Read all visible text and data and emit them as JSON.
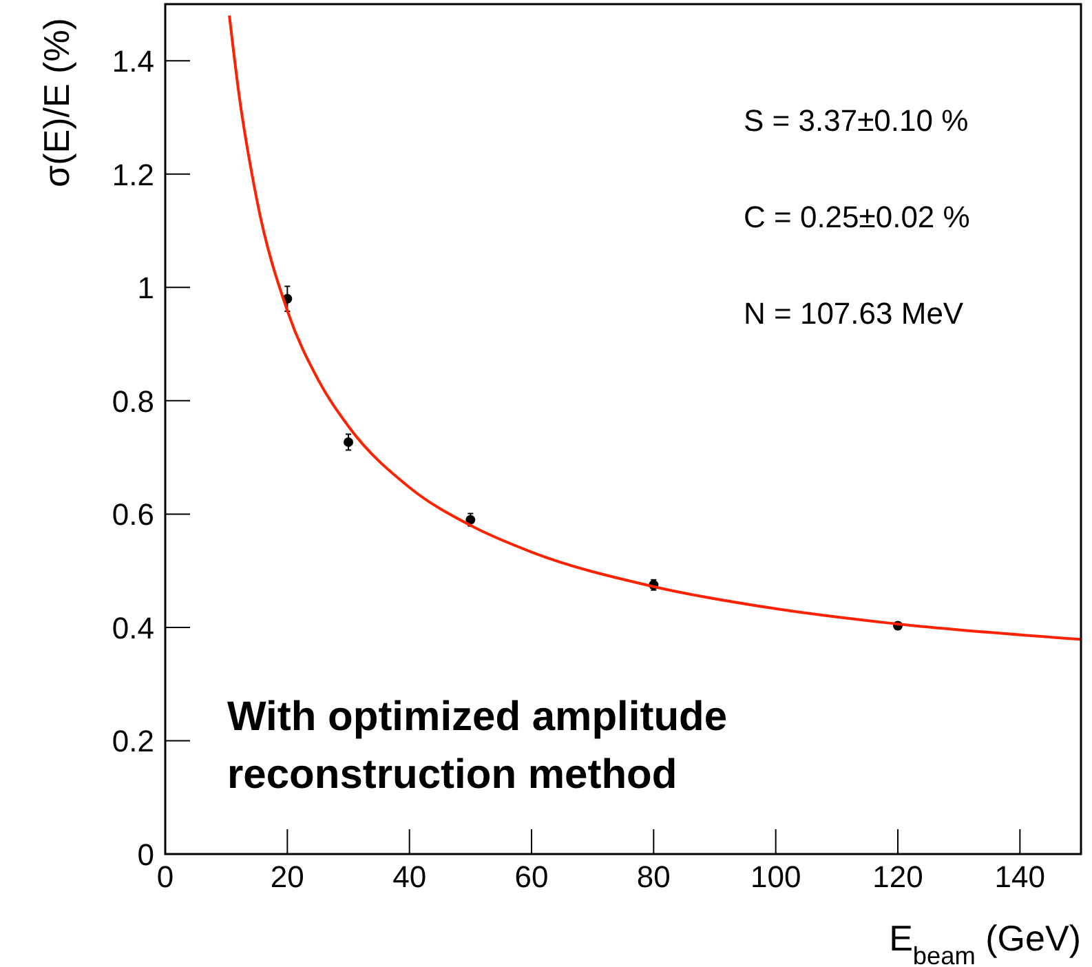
{
  "chart_data": {
    "type": "scatter",
    "xlabel": "E$_{beam}$ (GeV)",
    "ylabel": "σ(E)/E (%)",
    "xlim": [
      0,
      150
    ],
    "ylim": [
      0,
      1.5
    ],
    "xticks": [
      0,
      20,
      40,
      60,
      80,
      100,
      120,
      140
    ],
    "yticks": [
      0,
      0.2,
      0.4,
      0.6,
      0.8,
      1,
      1.2,
      1.4
    ],
    "marker": "circle",
    "series": [
      {
        "type": "scatter",
        "color": "#000000",
        "x": [
          20,
          30,
          50,
          80,
          120
        ],
        "values": [
          0.98,
          0.727,
          0.59,
          0.475,
          0.403
        ],
        "errors": [
          0.022,
          0.014,
          0.011,
          0.009,
          0.006
        ]
      },
      {
        "type": "line",
        "color": "#ff2200",
        "marker": "none",
        "x": [
          10.5,
          12,
          15,
          20,
          25,
          30,
          40,
          50,
          60,
          80,
          100,
          120,
          150
        ],
        "values": [
          1.48,
          1.347,
          1.155,
          0.959,
          0.838,
          0.755,
          0.647,
          0.58,
          0.533,
          0.472,
          0.433,
          0.406,
          0.379
        ]
      }
    ],
    "annotations": [
      "S = 3.37±0.10 %",
      "C = 0.25±0.02 %",
      "N = 107.63 MeV",
      "With optimized amplitude reconstruction method"
    ]
  }
}
